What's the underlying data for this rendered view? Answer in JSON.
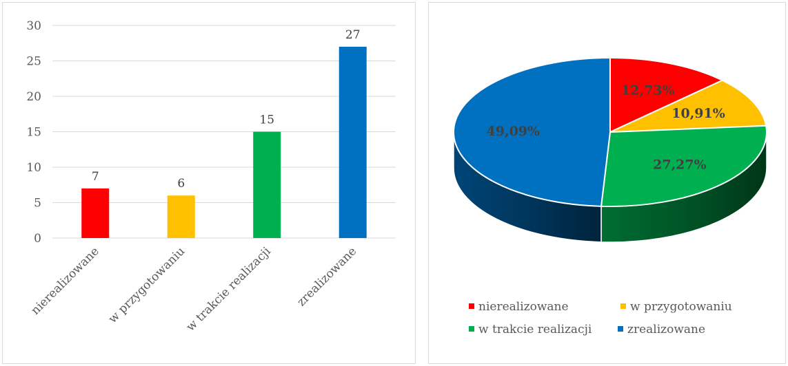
{
  "chart_data": [
    {
      "type": "bar",
      "categories": [
        "nierealizowane",
        "w przygotowaniu",
        "w trakcie realizacji",
        "zrealizowane"
      ],
      "values": [
        7,
        6,
        15,
        27
      ],
      "data_labels": [
        "7",
        "6",
        "15",
        "27"
      ],
      "colors": [
        "#ff0000",
        "#ffc000",
        "#00b050",
        "#0070c0"
      ],
      "ylim": [
        0,
        30
      ],
      "yticks": [
        "0",
        "5",
        "10",
        "15",
        "20",
        "25",
        "30"
      ],
      "grid": true
    },
    {
      "type": "pie",
      "style": "3d",
      "categories": [
        "nierealizowane",
        "w przygotowaniu",
        "w trakcie realizacji",
        "zrealizowane"
      ],
      "values": [
        12.73,
        10.91,
        27.27,
        49.09
      ],
      "data_labels": [
        "12,73%",
        "10,91%",
        "27,27%",
        "49,09%"
      ],
      "colors": [
        "#ff0000",
        "#ffc000",
        "#00b050",
        "#0070c0"
      ],
      "legend_position": "bottom"
    }
  ]
}
